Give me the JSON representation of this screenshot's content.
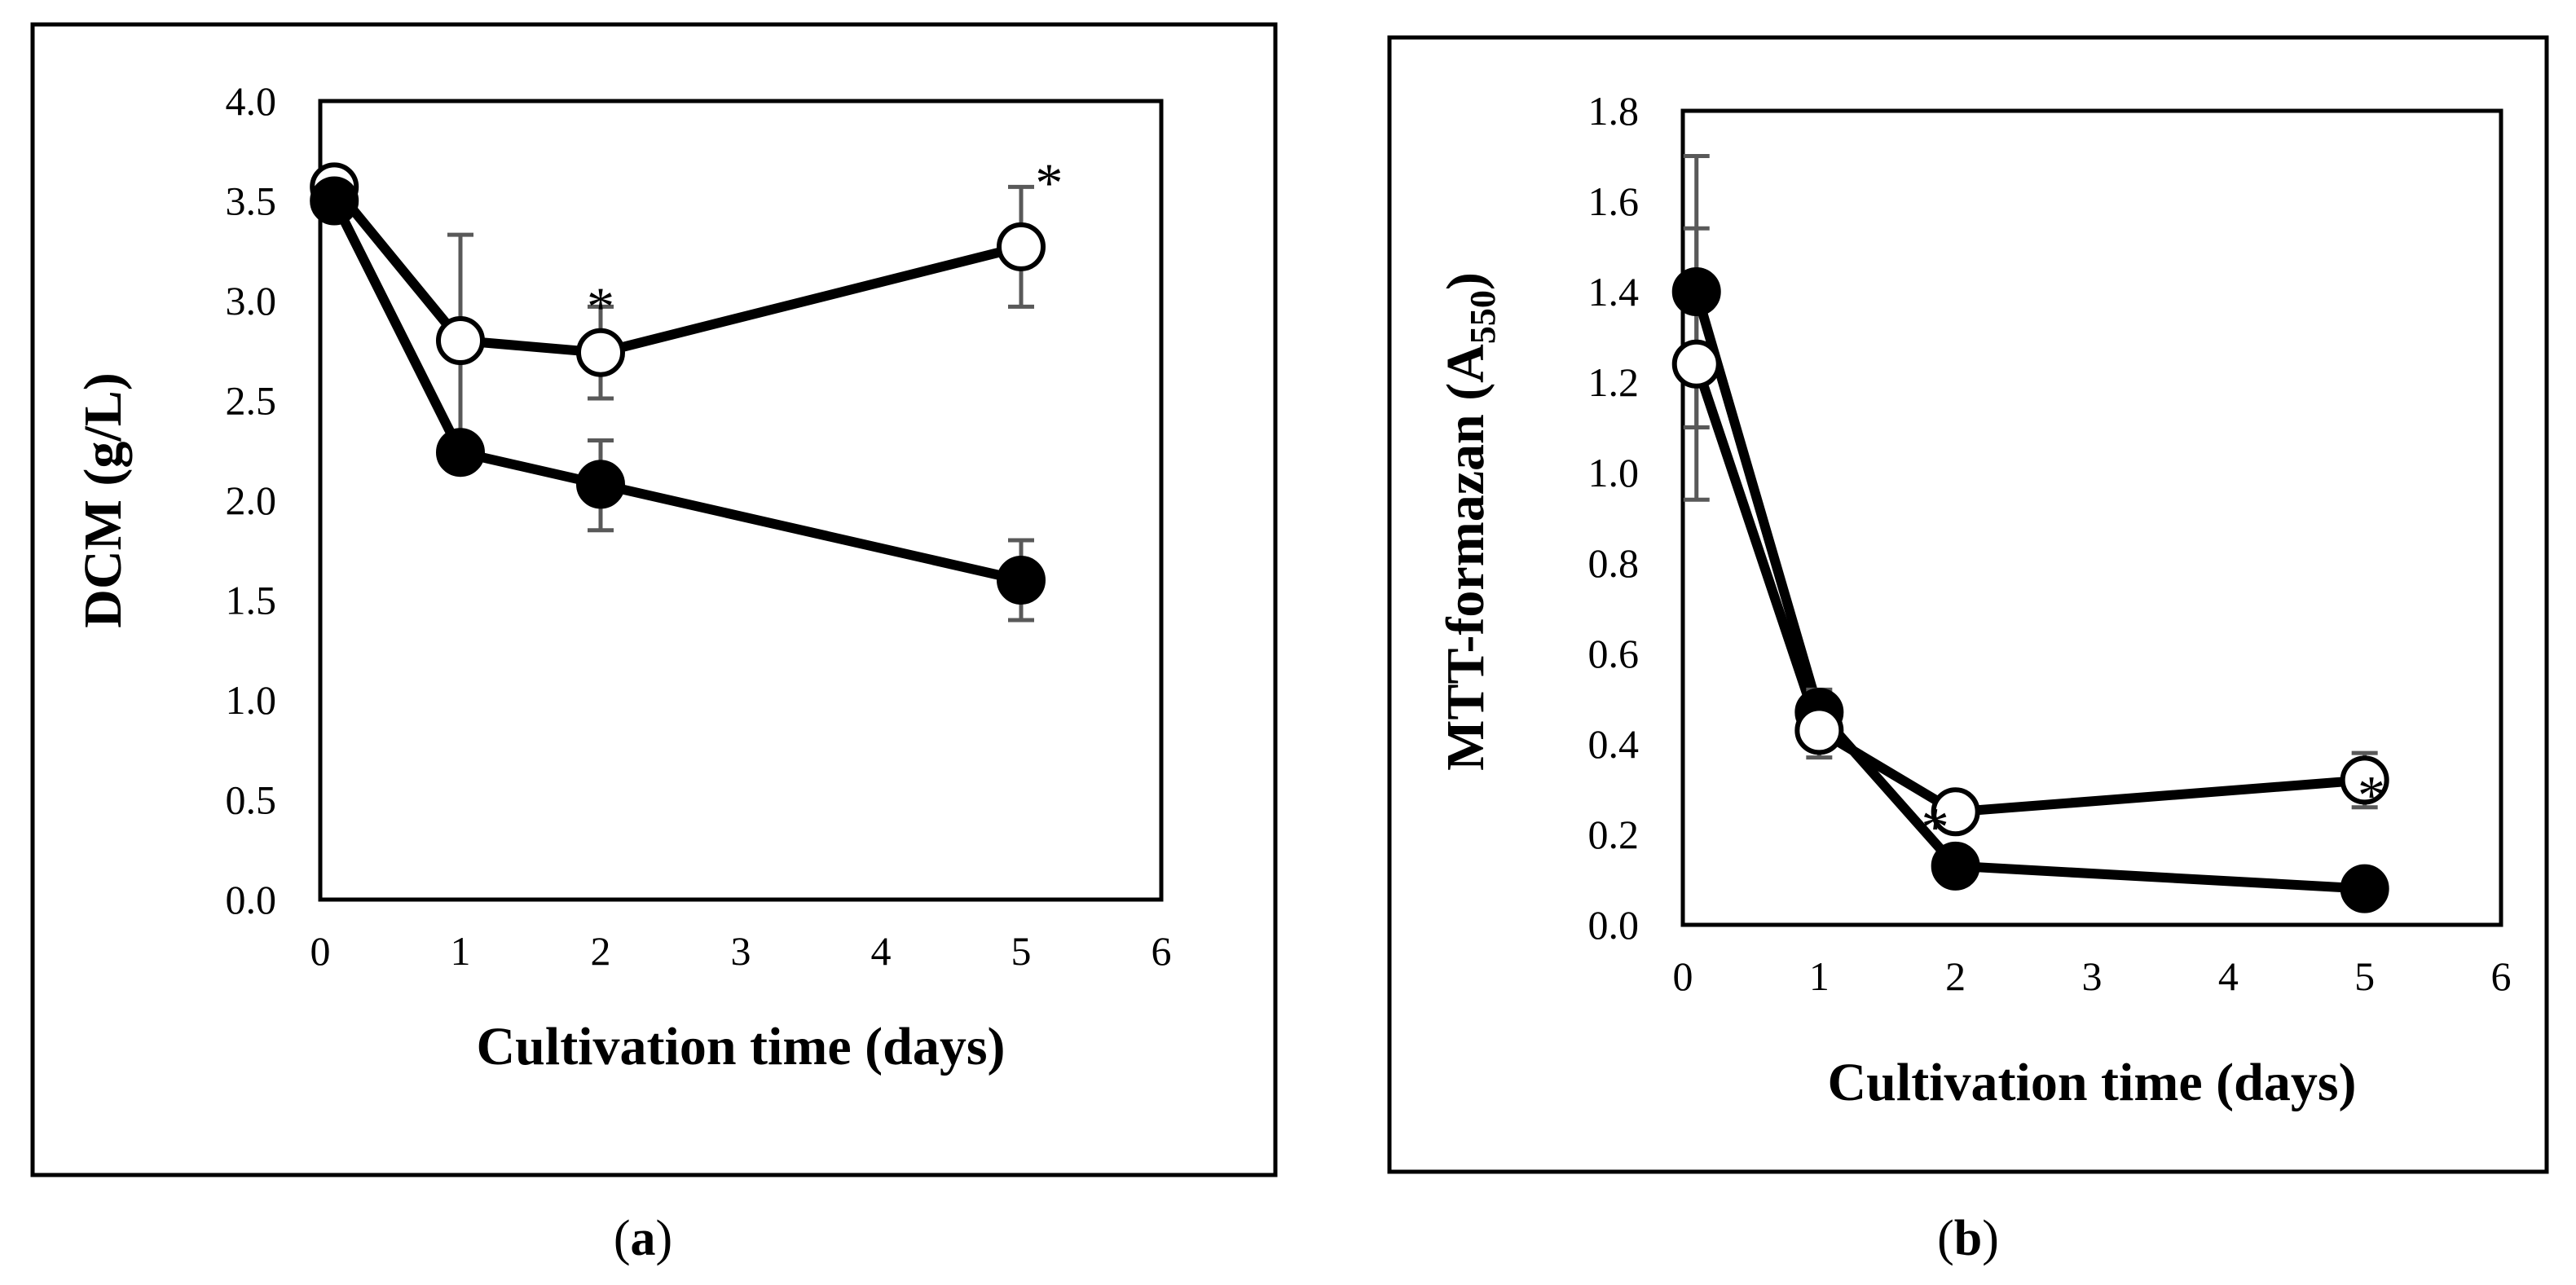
{
  "chart_data": [
    {
      "type": "line",
      "panel_label": "a",
      "caption": {
        "open": "(",
        "letter": "a",
        "close": ")"
      },
      "xlabel": "Cultivation time (days)",
      "ylabel": "DCM (g/L)",
      "xlim": [
        0,
        6
      ],
      "ylim": [
        0,
        4
      ],
      "xticks": [
        0,
        1,
        2,
        3,
        4,
        5,
        6
      ],
      "xtick_labels": [
        "0",
        "1",
        "2",
        "3",
        "4",
        "5",
        "6"
      ],
      "yticks": [
        0,
        0.5,
        1,
        1.5,
        2,
        2.5,
        3,
        3.5,
        4
      ],
      "ytick_labels": [
        "0.0",
        "0.5",
        "1.0",
        "1.5",
        "2.0",
        "2.5",
        "3.0",
        "3.5",
        "4.0"
      ],
      "grid": false,
      "series": [
        {
          "name": "open circles",
          "marker": "open",
          "x": [
            0.1,
            1,
            2,
            5
          ],
          "values": [
            3.57,
            2.8,
            2.74,
            3.27
          ],
          "err_high": [
            3.66,
            3.33,
            2.97,
            3.57
          ],
          "err_low": [
            3.48,
            2.33,
            2.51,
            2.97
          ]
        },
        {
          "name": "filled circles",
          "marker": "filled",
          "x": [
            0.1,
            1,
            2,
            5
          ],
          "values": [
            3.5,
            2.24,
            2.08,
            1.6
          ],
          "err_high": [
            3.58,
            2.24,
            2.3,
            1.8
          ],
          "err_low": [
            3.42,
            2.24,
            1.85,
            1.4
          ]
        }
      ],
      "annotations": [
        {
          "text": "*",
          "x": 2.0,
          "y": 3.0
        },
        {
          "text": "*",
          "x": 5.2,
          "y": 3.62
        }
      ]
    },
    {
      "type": "line",
      "panel_label": "b",
      "caption": {
        "open": "(",
        "letter": "b",
        "close": ")"
      },
      "xlabel": "Cultivation time (days)",
      "ylabel": "MTT-formazan (A",
      "ylabel_sub": "550",
      "ylabel_end": ")",
      "xlim": [
        0,
        6
      ],
      "ylim": [
        0,
        1.8
      ],
      "xticks": [
        0,
        1,
        2,
        3,
        4,
        5,
        6
      ],
      "xtick_labels": [
        "0",
        "1",
        "2",
        "3",
        "4",
        "5",
        "6"
      ],
      "yticks": [
        0,
        0.2,
        0.4,
        0.6,
        0.8,
        1,
        1.2,
        1.4,
        1.6,
        1.8
      ],
      "ytick_labels": [
        "0.0",
        "0.2",
        "0.4",
        "0.6",
        "0.8",
        "1.0",
        "1.2",
        "1.4",
        "1.6",
        "1.8"
      ],
      "grid": false,
      "series": [
        {
          "name": "filled circles",
          "marker": "filled",
          "x": [
            0.1,
            1,
            2,
            5
          ],
          "values": [
            1.4,
            0.47,
            0.13,
            0.08
          ],
          "err_high": [
            1.7,
            0.52,
            0.13,
            0.08
          ],
          "err_low": [
            1.1,
            0.42,
            0.13,
            0.08
          ]
        },
        {
          "name": "open circles",
          "marker": "open",
          "x": [
            0.1,
            1,
            2,
            5
          ],
          "values": [
            1.24,
            0.43,
            0.25,
            0.32
          ],
          "err_high": [
            1.54,
            0.49,
            0.25,
            0.38
          ],
          "err_low": [
            0.94,
            0.37,
            0.25,
            0.26
          ]
        }
      ],
      "annotations": [
        {
          "text": "*",
          "x": 1.85,
          "y": 0.23
        },
        {
          "text": "*",
          "x": 5.05,
          "y": 0.3
        }
      ]
    }
  ]
}
